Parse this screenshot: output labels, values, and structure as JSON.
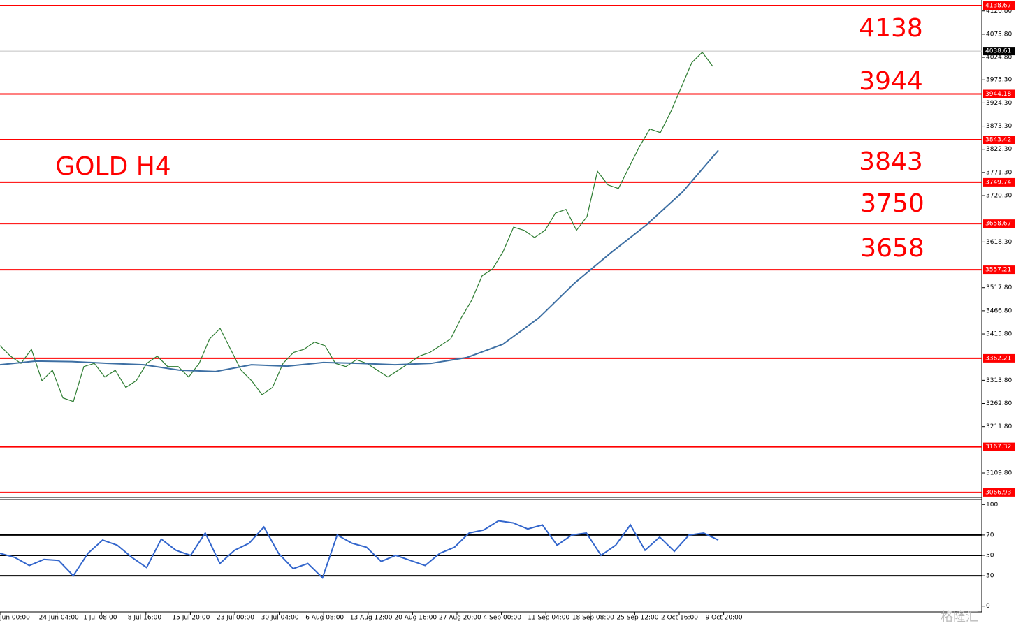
{
  "chart_data": [
    {
      "type": "line",
      "annotations": [
        "4138",
        "3944",
        "3843",
        "3750",
        "3658",
        "GOLD H4"
      ],
      "levels": [
        4138.67,
        3944.18,
        3843.42,
        3749.74,
        3658.67,
        3557.21,
        3362.21,
        3167.32,
        3066.93
      ],
      "level_color": "#ff0000",
      "current_price": 4038.61,
      "series": [
        {
          "color": "#2e7d32",
          "values": [
            3390,
            3367,
            3351,
            3382,
            3313,
            3336,
            3275,
            3267,
            3344,
            3351,
            3321,
            3336,
            3298,
            3313,
            3351,
            3367,
            3344,
            3344,
            3321,
            3351,
            3405,
            3428,
            3382,
            3336,
            3313,
            3282,
            3298,
            3351,
            3375,
            3382,
            3398,
            3390,
            3351,
            3344,
            3359,
            3351,
            3336,
            3321,
            3336,
            3351,
            3367,
            3375,
            3390,
            3405,
            3451,
            3490,
            3544,
            3559,
            3597,
            3651,
            3644,
            3628,
            3644,
            3682,
            3690,
            3644,
            3674,
            3774,
            3744,
            3736,
            3782,
            3828,
            3867,
            3859,
            3905,
            3959,
            4013,
            4036,
            4005
          ]
        },
        {
          "color": "#3d6fa3",
          "values": [
            3348,
            3356,
            3355,
            3351,
            3348,
            3336,
            3333,
            3348,
            3345,
            3353,
            3351,
            3348,
            3351,
            3364,
            3393,
            3451,
            3528,
            3594,
            3656,
            3728,
            3820
          ]
        }
      ],
      "ylim": [
        3056,
        4151
      ],
      "yticks": [
        {
          "value": 4126.8,
          "label": "4126.80"
        },
        {
          "value": 4075.8,
          "label": "4075.80"
        },
        {
          "value": 4024.8,
          "label": "4024.80"
        },
        {
          "value": 3975.3,
          "label": "3975.30"
        },
        {
          "value": 3924.3,
          "label": "3924.30"
        },
        {
          "value": 3873.3,
          "label": "3873.30"
        },
        {
          "value": 3822.3,
          "label": "3822.30"
        },
        {
          "value": 3771.3,
          "label": "3771.30"
        },
        {
          "value": 3720.3,
          "label": "3720.30"
        },
        {
          "value": 3618.3,
          "label": "3618.30"
        },
        {
          "value": 3517.8,
          "label": "3517.80"
        },
        {
          "value": 3466.8,
          "label": "3466.80"
        },
        {
          "value": 3415.8,
          "label": "3415.80"
        },
        {
          "value": 3313.8,
          "label": "3313.80"
        },
        {
          "value": 3262.8,
          "label": "3262.80"
        },
        {
          "value": 3211.8,
          "label": "3211.80"
        },
        {
          "value": 3109.8,
          "label": "3109.80"
        }
      ],
      "x_labels": [
        "Jun 00:00",
        "24 Jun 04:00",
        "1 Jul 08:00",
        "8 Jul 16:00",
        "15 Jul 20:00",
        "23 Jul 00:00",
        "30 Jul 04:00",
        "6 Aug 08:00",
        "13 Aug 12:00",
        "20 Aug 16:00",
        "27 Aug 20:00",
        "4 Sep 00:00",
        "11 Sep 04:00",
        "18 Sep 08:00",
        "25 Sep 12:00",
        "2 Oct 16:00",
        "9 Oct 20:00"
      ]
    },
    {
      "type": "line",
      "series": [
        {
          "color": "#3366cc",
          "values": [
            52,
            48,
            40,
            46,
            45,
            30,
            52,
            65,
            60,
            48,
            38,
            66,
            55,
            50,
            72,
            42,
            55,
            62,
            78,
            52,
            37,
            42,
            28,
            70,
            62,
            58,
            44,
            50,
            45,
            40,
            52,
            58,
            72,
            75,
            84,
            82,
            76,
            80,
            60,
            70,
            72,
            50,
            60,
            80,
            55,
            68,
            54,
            70,
            72,
            65
          ]
        }
      ],
      "ylim": [
        -5,
        105
      ],
      "yticks": [
        100,
        70,
        50,
        30,
        0
      ],
      "levels": [
        70,
        50,
        30
      ]
    }
  ],
  "watermark": "格隆汇"
}
